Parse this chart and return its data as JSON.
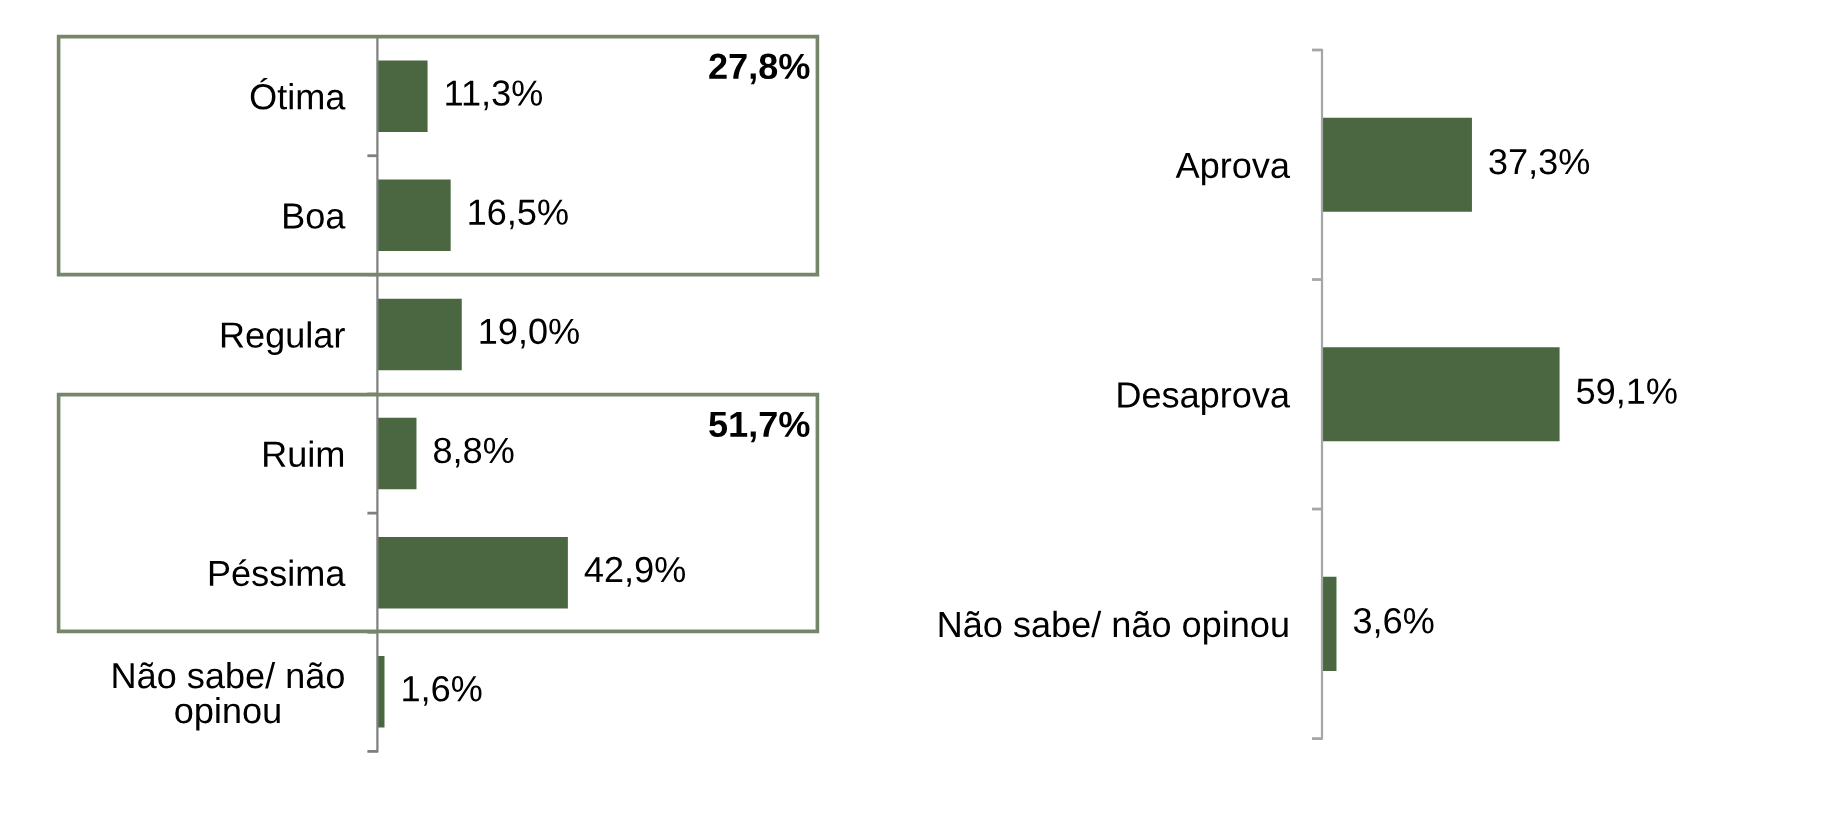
{
  "chart_data": [
    {
      "type": "bar",
      "orientation": "horizontal",
      "categories": [
        "Ótima",
        "Boa",
        "Regular",
        "Ruim",
        "Péssima",
        "Não sabe/ não opinou"
      ],
      "values": [
        11.3,
        16.5,
        19.0,
        8.8,
        42.9,
        1.6
      ],
      "color": "#4a6741",
      "value_labels": [
        "11,3%",
        "16,5%",
        "19,0%",
        "8,8%",
        "42,9%",
        "1,6%"
      ],
      "annotations": [
        "27,8%",
        "51,7%"
      ]
    },
    {
      "type": "bar",
      "orientation": "horizontal",
      "categories": [
        "Aprova",
        "Desaprova",
        "Não sabe/ não opinou"
      ],
      "values": [
        37.3,
        59.1,
        3.6
      ],
      "color": "#4a6741",
      "value_labels": [
        "37,3%",
        "59,1%",
        "3,6%"
      ]
    }
  ]
}
